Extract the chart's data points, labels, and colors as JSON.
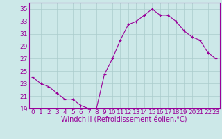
{
  "x": [
    0,
    1,
    2,
    3,
    4,
    5,
    6,
    7,
    8,
    9,
    10,
    11,
    12,
    13,
    14,
    15,
    16,
    17,
    18,
    19,
    20,
    21,
    22,
    23
  ],
  "y": [
    24.0,
    23.0,
    22.5,
    21.5,
    20.5,
    20.5,
    19.5,
    19.0,
    19.0,
    24.5,
    27.0,
    30.0,
    32.5,
    33.0,
    34.0,
    35.0,
    34.0,
    34.0,
    33.0,
    31.5,
    30.5,
    30.0,
    28.0,
    27.0
  ],
  "line_color": "#990099",
  "marker": "+",
  "marker_color": "#990099",
  "bg_color": "#cce8e8",
  "grid_color": "#aacccc",
  "xlabel": "Windchill (Refroidissement éolien,°C)",
  "ylim": [
    19,
    36
  ],
  "xlim": [
    -0.5,
    23.5
  ],
  "yticks": [
    19,
    21,
    23,
    25,
    27,
    29,
    31,
    33,
    35
  ],
  "xticks": [
    0,
    1,
    2,
    3,
    4,
    5,
    6,
    7,
    8,
    9,
    10,
    11,
    12,
    13,
    14,
    15,
    16,
    17,
    18,
    19,
    20,
    21,
    22,
    23
  ],
  "xlabel_color": "#990099",
  "tick_color": "#990099",
  "axis_color": "#990099",
  "font_size": 6.5,
  "xlabel_fontsize": 7.0,
  "linewidth": 0.8,
  "markersize": 3.5,
  "markeredgewidth": 0.8
}
